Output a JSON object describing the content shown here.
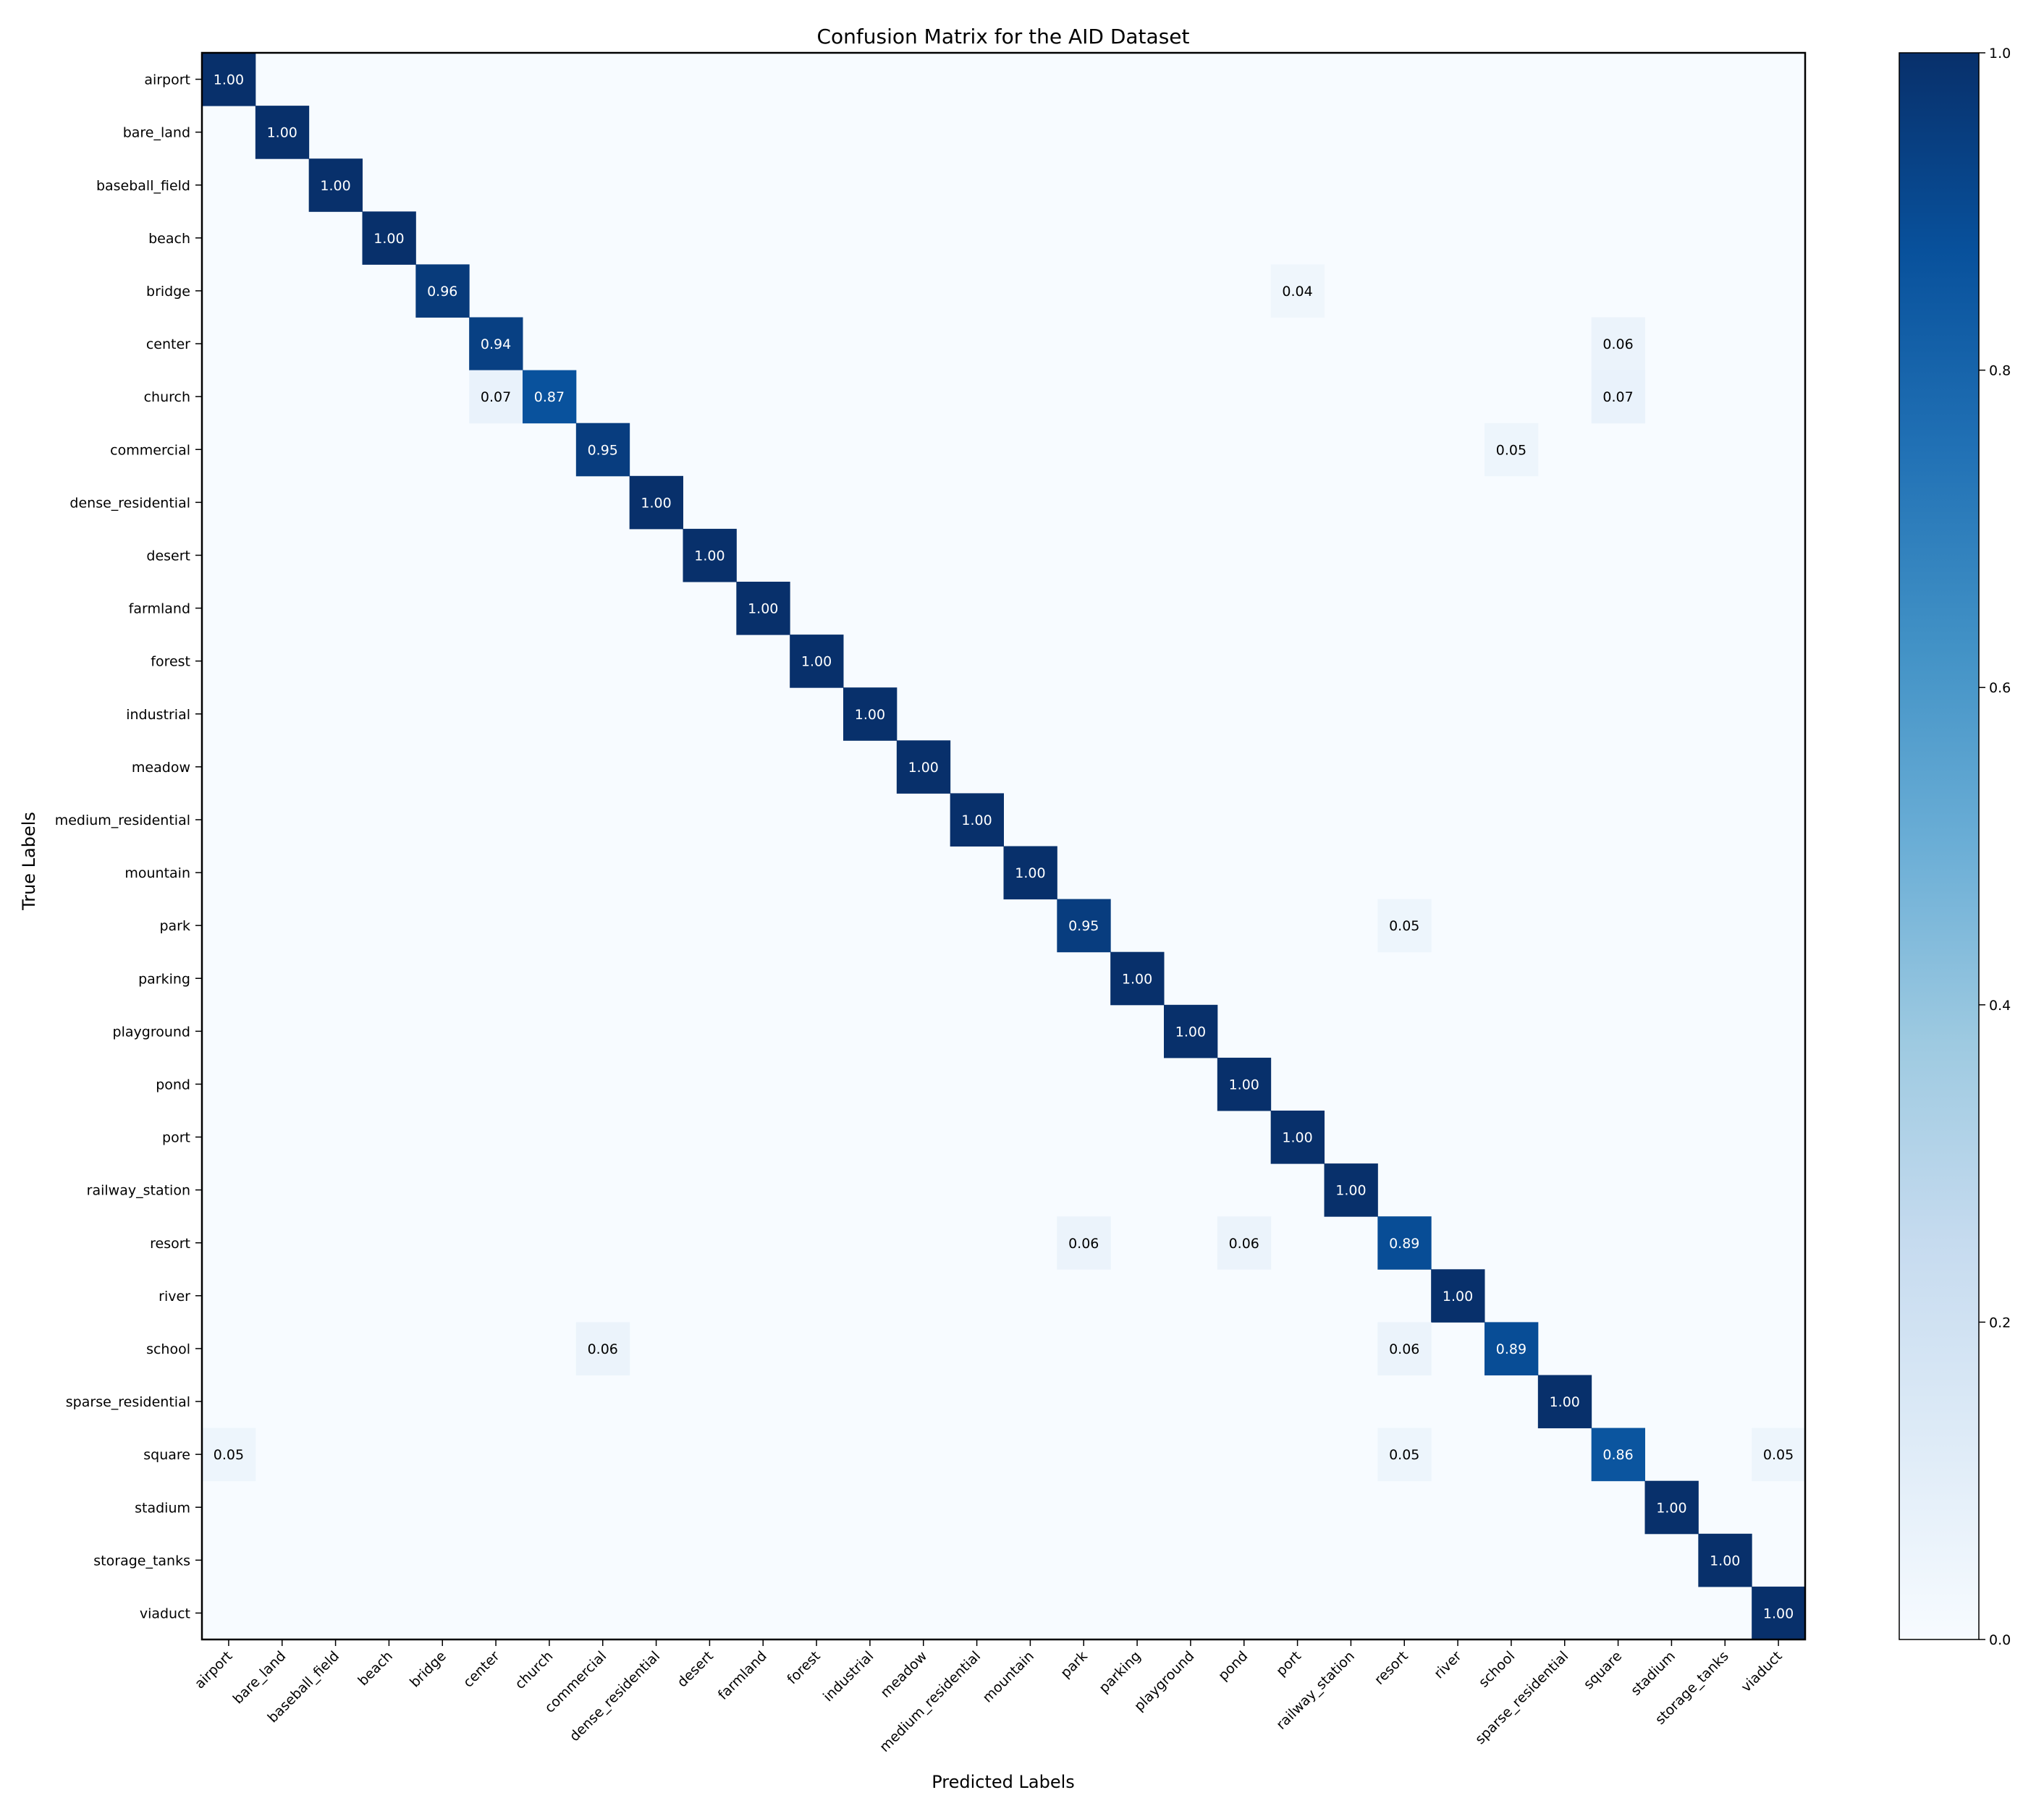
{
  "chart_data": {
    "type": "heatmap",
    "title": "Confusion Matrix for the AID Dataset",
    "xlabel": "Predicted Labels",
    "ylabel": "True Labels",
    "labels": [
      "airport",
      "bare_land",
      "baseball_field",
      "beach",
      "bridge",
      "center",
      "church",
      "commercial",
      "dense_residential",
      "desert",
      "farmland",
      "forest",
      "industrial",
      "meadow",
      "medium_residential",
      "mountain",
      "park",
      "parking",
      "playground",
      "pond",
      "port",
      "railway_station",
      "resort",
      "river",
      "school",
      "sparse_residential",
      "square",
      "stadium",
      "storage_tanks",
      "viaduct"
    ],
    "cells": [
      {
        "row": 0,
        "col": 0,
        "value": 1.0
      },
      {
        "row": 1,
        "col": 1,
        "value": 1.0
      },
      {
        "row": 2,
        "col": 2,
        "value": 1.0
      },
      {
        "row": 3,
        "col": 3,
        "value": 1.0
      },
      {
        "row": 4,
        "col": 4,
        "value": 0.96
      },
      {
        "row": 4,
        "col": 20,
        "value": 0.04
      },
      {
        "row": 5,
        "col": 5,
        "value": 0.94
      },
      {
        "row": 5,
        "col": 26,
        "value": 0.06
      },
      {
        "row": 6,
        "col": 5,
        "value": 0.07
      },
      {
        "row": 6,
        "col": 6,
        "value": 0.87
      },
      {
        "row": 6,
        "col": 26,
        "value": 0.07
      },
      {
        "row": 7,
        "col": 7,
        "value": 0.95
      },
      {
        "row": 7,
        "col": 24,
        "value": 0.05
      },
      {
        "row": 8,
        "col": 8,
        "value": 1.0
      },
      {
        "row": 9,
        "col": 9,
        "value": 1.0
      },
      {
        "row": 10,
        "col": 10,
        "value": 1.0
      },
      {
        "row": 11,
        "col": 11,
        "value": 1.0
      },
      {
        "row": 12,
        "col": 12,
        "value": 1.0
      },
      {
        "row": 13,
        "col": 13,
        "value": 1.0
      },
      {
        "row": 14,
        "col": 14,
        "value": 1.0
      },
      {
        "row": 15,
        "col": 15,
        "value": 1.0
      },
      {
        "row": 16,
        "col": 16,
        "value": 0.95
      },
      {
        "row": 16,
        "col": 22,
        "value": 0.05
      },
      {
        "row": 17,
        "col": 17,
        "value": 1.0
      },
      {
        "row": 18,
        "col": 18,
        "value": 1.0
      },
      {
        "row": 19,
        "col": 19,
        "value": 1.0
      },
      {
        "row": 20,
        "col": 20,
        "value": 1.0
      },
      {
        "row": 21,
        "col": 21,
        "value": 1.0
      },
      {
        "row": 22,
        "col": 16,
        "value": 0.06
      },
      {
        "row": 22,
        "col": 19,
        "value": 0.06
      },
      {
        "row": 22,
        "col": 22,
        "value": 0.89
      },
      {
        "row": 23,
        "col": 23,
        "value": 1.0
      },
      {
        "row": 24,
        "col": 7,
        "value": 0.06
      },
      {
        "row": 24,
        "col": 22,
        "value": 0.06
      },
      {
        "row": 24,
        "col": 24,
        "value": 0.89
      },
      {
        "row": 25,
        "col": 25,
        "value": 1.0
      },
      {
        "row": 26,
        "col": 0,
        "value": 0.05
      },
      {
        "row": 26,
        "col": 22,
        "value": 0.05
      },
      {
        "row": 26,
        "col": 26,
        "value": 0.86
      },
      {
        "row": 26,
        "col": 29,
        "value": 0.05
      },
      {
        "row": 27,
        "col": 27,
        "value": 1.0
      },
      {
        "row": 28,
        "col": 28,
        "value": 1.0
      },
      {
        "row": 29,
        "col": 29,
        "value": 1.0
      }
    ],
    "value_range": [
      0.0,
      1.0
    ],
    "colormap": "Blues",
    "colorbar_ticks": [
      "0.0",
      "0.2",
      "0.4",
      "0.6",
      "0.8",
      "1.0"
    ],
    "grid": false,
    "legend": "colorbar-right"
  }
}
